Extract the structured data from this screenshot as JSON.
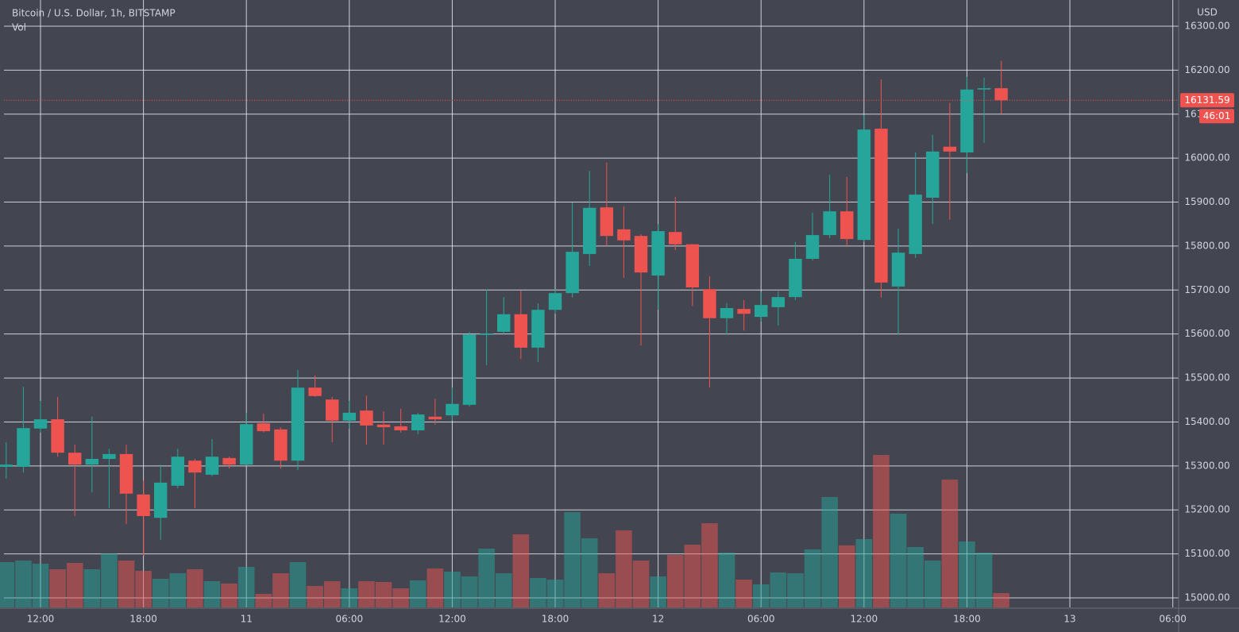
{
  "chart_data": {
    "type": "candlestick",
    "title": "Bitcoin / U.S. Dollar, 1h, BITSTAMP",
    "volume_label": "Vol",
    "y_axis_label": "USD",
    "last_price": 16131.59,
    "countdown": "46:01",
    "up_color": "#26a69a",
    "down_color": "#ef5350",
    "grid": true,
    "x": [
      10,
      11,
      12,
      13,
      14,
      15,
      16,
      17,
      18,
      19,
      20,
      21,
      22,
      23,
      24,
      25,
      26,
      27,
      28,
      29,
      30,
      31,
      32,
      33,
      34,
      35,
      36,
      37,
      38,
      39,
      40,
      41,
      42,
      43,
      44,
      45,
      46,
      47,
      48,
      49,
      50,
      51,
      52,
      53,
      54,
      55,
      56,
      57,
      58,
      59,
      60,
      61,
      62,
      63,
      64,
      65,
      66,
      67,
      68
    ],
    "open": [
      15298,
      15298,
      15385,
      15406,
      15330,
      15303,
      15316,
      15327,
      15235,
      15182,
      15255,
      15312,
      15280,
      15318,
      15303,
      15397,
      15383,
      15312,
      15478,
      15451,
      15403,
      15426,
      15394,
      15390,
      15381,
      15412,
      15415,
      15439,
      15598,
      15605,
      15645,
      15569,
      15655,
      15693,
      15782,
      15888,
      15838,
      15823,
      15733,
      15832,
      15804,
      15702,
      15636,
      15657,
      15639,
      15661,
      15684,
      15771,
      15825,
      15879,
      15814,
      16067,
      15708,
      15782,
      15910,
      16026,
      16013,
      16156,
      16159
    ],
    "high": [
      15354,
      15480,
      15448,
      15457,
      15348,
      15412,
      15339,
      15348,
      15267,
      15303,
      15339,
      15316,
      15361,
      15321,
      15421,
      15419,
      15388,
      15518,
      15506,
      15457,
      15448,
      15460,
      15424,
      15430,
      15421,
      15453,
      15478,
      15605,
      15701,
      15684,
      15699,
      15670,
      15702,
      15899,
      15971,
      15990,
      15890,
      15827,
      15850,
      15912,
      15805,
      15731,
      15670,
      15677,
      15695,
      15697,
      15809,
      15876,
      15962,
      15957,
      16098,
      16179,
      15840,
      16013,
      16053,
      16125,
      16185,
      16183,
      16221
    ],
    "low": [
      15271,
      15285,
      15376,
      15321,
      15186,
      15240,
      15204,
      15168,
      15096,
      15132,
      15249,
      15204,
      15276,
      15294,
      15300,
      15376,
      15294,
      15291,
      15457,
      15354,
      15385,
      15348,
      15348,
      15376,
      15372,
      15394,
      15403,
      15435,
      15529,
      15598,
      15543,
      15536,
      15646,
      15683,
      15755,
      15800,
      15728,
      15574,
      15655,
      15791,
      15664,
      15478,
      15598,
      15608,
      15628,
      15619,
      15677,
      15767,
      15818,
      15800,
      15809,
      15683,
      15598,
      15773,
      15850,
      15860,
      15966,
      16035,
      16101
    ],
    "close": [
      15303,
      15386,
      15406,
      15330,
      15303,
      15316,
      15327,
      15237,
      15186,
      15262,
      15321,
      15285,
      15321,
      15303,
      15395,
      15379,
      15312,
      15478,
      15459,
      15403,
      15421,
      15392,
      15388,
      15381,
      15417,
      15406,
      15441,
      15599,
      15601,
      15645,
      15569,
      15655,
      15693,
      15787,
      15887,
      15823,
      15813,
      15740,
      15834,
      15804,
      15706,
      15636,
      15659,
      15646,
      15666,
      15684,
      15771,
      15825,
      15879,
      15816,
      16065,
      15717,
      15785,
      15917,
      16015,
      16015,
      16156,
      16159,
      16131.59
    ],
    "volume": [
      57,
      59,
      55,
      48,
      56,
      48,
      68,
      59,
      46,
      36,
      43,
      48,
      33,
      30,
      51,
      17,
      43,
      57,
      27,
      33,
      24,
      33,
      32,
      24,
      34,
      49,
      45,
      39,
      74,
      43,
      92,
      37,
      35,
      120,
      87,
      43,
      97,
      59,
      39,
      66,
      79,
      106,
      69,
      35,
      29,
      44,
      43,
      73,
      139,
      78,
      86,
      192,
      118,
      76,
      59,
      161,
      83,
      69,
      18
    ],
    "volume_ylim": [
      0,
      765
    ],
    "xlim": [
      9.87,
      78.34
    ],
    "xticks": [
      {
        "value": 12,
        "label": "12:00"
      },
      {
        "value": 18,
        "label": "18:00"
      },
      {
        "value": 24,
        "label": "11"
      },
      {
        "value": 30,
        "label": "06:00"
      },
      {
        "value": 36,
        "label": "12:00"
      },
      {
        "value": 42,
        "label": "18:00"
      },
      {
        "value": 48,
        "label": "12"
      },
      {
        "value": 54,
        "label": "06:00"
      },
      {
        "value": 60,
        "label": "12:00"
      },
      {
        "value": 66,
        "label": "18:00"
      },
      {
        "value": 72,
        "label": "13"
      },
      {
        "value": 78,
        "label": "06:00"
      }
    ],
    "ylim": [
      14978.3,
      16359.6
    ],
    "yticks": [
      {
        "value": 15000,
        "label": "15000.00"
      },
      {
        "value": 15100,
        "label": "15100.00"
      },
      {
        "value": 15200,
        "label": "15200.00"
      },
      {
        "value": 15300,
        "label": "15300.00"
      },
      {
        "value": 15400,
        "label": "15400.00"
      },
      {
        "value": 15500,
        "label": "15500.00"
      },
      {
        "value": 15600,
        "label": "15600.00"
      },
      {
        "value": 15700,
        "label": "15700.00"
      },
      {
        "value": 15800,
        "label": "15800.00"
      },
      {
        "value": 15900,
        "label": "15900.00"
      },
      {
        "value": 16000,
        "label": "16000.00"
      },
      {
        "value": 16100,
        "label": "16100.00"
      },
      {
        "value": 16200,
        "label": "16200.00"
      },
      {
        "value": 16300,
        "label": "16300.00"
      }
    ]
  }
}
